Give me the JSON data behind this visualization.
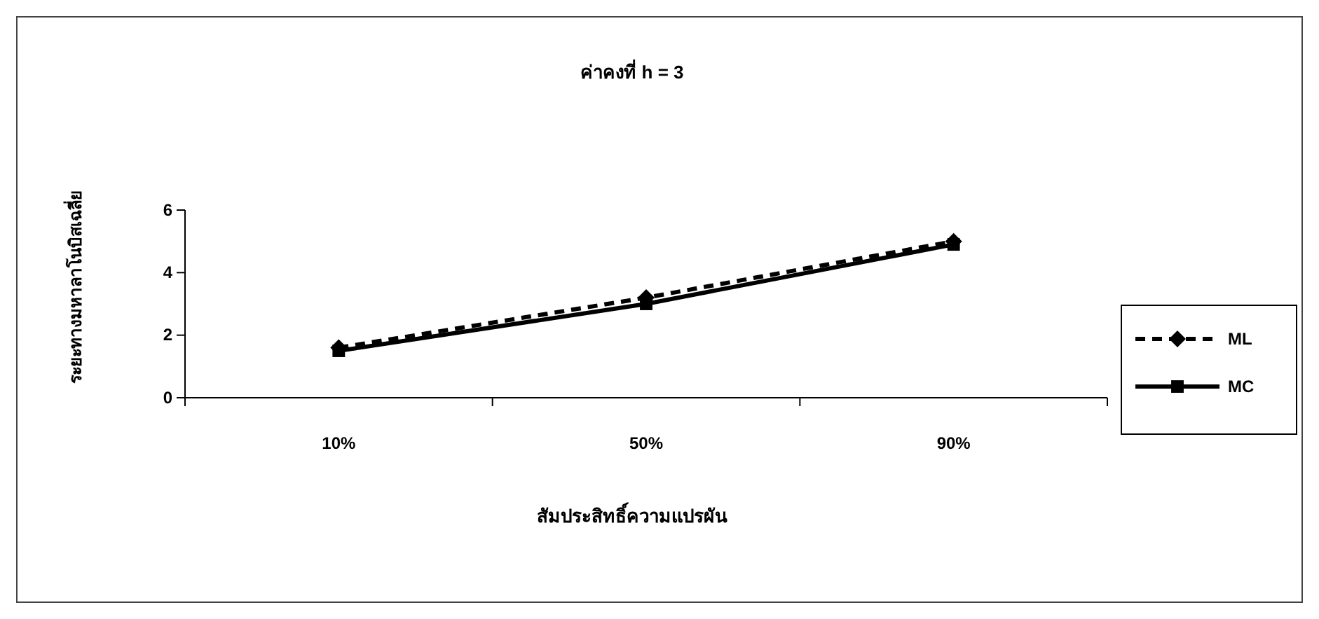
{
  "chart_data": {
    "type": "line",
    "title": "ค่าคงที่ h = 3",
    "xlabel": "สัมประสิทธิ์ความแปรผัน",
    "ylabel": "ระยะทางมหาลาโนบิสเฉลี่ย",
    "categories": [
      "10%",
      "50%",
      "90%"
    ],
    "ylim": [
      0,
      6
    ],
    "yticks": [
      0,
      2,
      4,
      6
    ],
    "grid": false,
    "legend": "right",
    "series": [
      {
        "name": "ML",
        "color": "#000000",
        "values": [
          1.6,
          3.2,
          5.0
        ],
        "marker": "diamond",
        "line_style": "dashed"
      },
      {
        "name": "MC",
        "color": "#000000",
        "values": [
          1.5,
          3.0,
          4.9
        ],
        "marker": "square",
        "line_style": "solid"
      }
    ]
  }
}
